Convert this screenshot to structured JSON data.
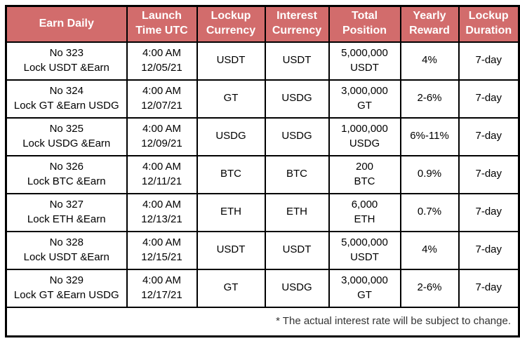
{
  "colors": {
    "header_bg": "#d26c6c",
    "header_text": "#ffffff",
    "border": "#000000",
    "body_text": "#000000",
    "footnote_text": "#333333"
  },
  "table": {
    "headers": [
      "Earn Daily",
      "Launch Time UTC",
      "Lockup Currency",
      "Interest Currency",
      "Total Position",
      "Yearly Reward",
      "Lockup Duration"
    ],
    "rows": [
      {
        "id": "No 323",
        "name": "Lock USDT &Earn",
        "launch_time": "4:00 AM",
        "launch_date": "12/05/21",
        "lockup_currency": "USDT",
        "interest_currency": "USDT",
        "position_amount": "5,000,000",
        "position_currency": "USDT",
        "yearly_reward": "4%",
        "lockup_duration": "7-day"
      },
      {
        "id": "No 324",
        "name": "Lock GT &Earn USDG",
        "launch_time": "4:00 AM",
        "launch_date": "12/07/21",
        "lockup_currency": "GT",
        "interest_currency": "USDG",
        "position_amount": "3,000,000",
        "position_currency": "GT",
        "yearly_reward": "2-6%",
        "lockup_duration": "7-day"
      },
      {
        "id": "No 325",
        "name": "Lock USDG &Earn",
        "launch_time": "4:00 AM",
        "launch_date": "12/09/21",
        "lockup_currency": "USDG",
        "interest_currency": "USDG",
        "position_amount": "1,000,000",
        "position_currency": "USDG",
        "yearly_reward": "6%-11%",
        "lockup_duration": "7-day"
      },
      {
        "id": "No 326",
        "name": "Lock BTC &Earn",
        "launch_time": "4:00 AM",
        "launch_date": "12/11/21",
        "lockup_currency": "BTC",
        "interest_currency": "BTC",
        "position_amount": "200",
        "position_currency": "BTC",
        "yearly_reward": "0.9%",
        "lockup_duration": "7-day"
      },
      {
        "id": "No 327",
        "name": "Lock ETH &Earn",
        "launch_time": "4:00 AM",
        "launch_date": "12/13/21",
        "lockup_currency": "ETH",
        "interest_currency": "ETH",
        "position_amount": "6,000",
        "position_currency": "ETH",
        "yearly_reward": "0.7%",
        "lockup_duration": "7-day"
      },
      {
        "id": "No 328",
        "name": "Lock USDT &Earn",
        "launch_time": "4:00 AM",
        "launch_date": "12/15/21",
        "lockup_currency": "USDT",
        "interest_currency": "USDT",
        "position_amount": "5,000,000",
        "position_currency": "USDT",
        "yearly_reward": "4%",
        "lockup_duration": "7-day"
      },
      {
        "id": "No 329",
        "name": "Lock GT &Earn USDG",
        "launch_time": "4:00 AM",
        "launch_date": "12/17/21",
        "lockup_currency": "GT",
        "interest_currency": "USDG",
        "position_amount": "3,000,000",
        "position_currency": "GT",
        "yearly_reward": "2-6%",
        "lockup_duration": "7-day"
      }
    ],
    "footnote": "* The actual interest rate will be subject to change."
  }
}
